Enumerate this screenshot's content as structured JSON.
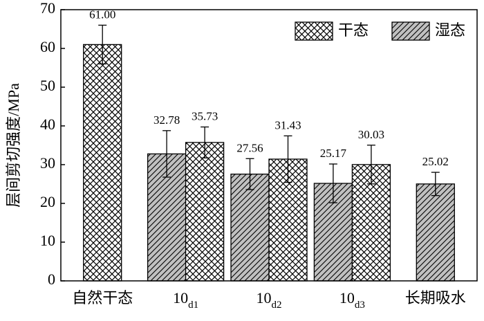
{
  "chart_data": {
    "type": "bar",
    "ylabel": "层间剪切强度/MPa",
    "categories": [
      "自然干态",
      "10d1",
      "10d2",
      "10d3",
      "长期吸水"
    ],
    "series": [
      {
        "name": "干态",
        "color": "#ffffff",
        "pattern": "crosshatch",
        "values": [
          61.0,
          35.73,
          31.43,
          30.03,
          null
        ],
        "value_labels": [
          "61.00",
          "35.73",
          "31.43",
          "30.03",
          null
        ],
        "errors": [
          5,
          4,
          6,
          5,
          null
        ]
      },
      {
        "name": "湿态",
        "color": "#c0c0c0",
        "pattern": "diagonal",
        "values": [
          null,
          32.78,
          27.56,
          25.17,
          25.02
        ],
        "value_labels": [
          null,
          "32.78",
          "27.56",
          "25.17",
          "25.02"
        ],
        "errors": [
          null,
          6,
          4,
          5,
          3
        ]
      }
    ],
    "ylim": [
      0,
      70
    ],
    "yticks": [
      0,
      10,
      20,
      30,
      40,
      50,
      60,
      70
    ],
    "legend": "upper right",
    "grid": false
  }
}
